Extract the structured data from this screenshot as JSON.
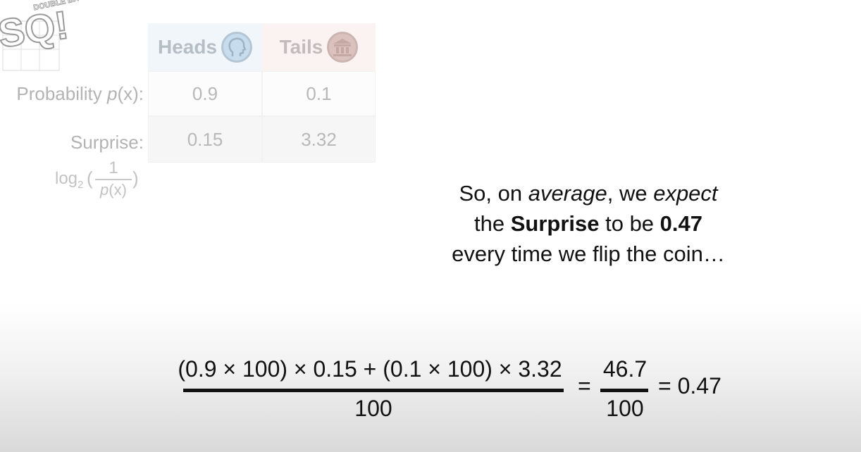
{
  "logo": {
    "small_text": "DOUBLE BAM!!",
    "letters": "SQ!"
  },
  "table": {
    "headers": [
      {
        "label": "Heads",
        "icon": "head-profile-icon"
      },
      {
        "label": "Tails",
        "icon": "building-icon"
      }
    ],
    "rows": [
      {
        "label_prefix": "Probability ",
        "label_var": "p",
        "label_suffix": "(x):",
        "values": [
          "0.9",
          "0.1"
        ]
      },
      {
        "label": "Surprise:",
        "values": [
          "0.15",
          "3.32"
        ]
      }
    ],
    "surprise_formula": {
      "log": "log",
      "base": "2",
      "open": "(",
      "numerator": "1",
      "denominator_var": "p",
      "denominator_rest": "(x)",
      "close": ")"
    }
  },
  "message": {
    "line1_a": "So, on ",
    "line1_em": "average",
    "line1_b": ", we ",
    "line1_em2": "expect",
    "line2_a": "the ",
    "line2_strong": "Surprise",
    "line2_b": " to be ",
    "line2_strong2": "0.47",
    "line3": "every time we flip the coin…"
  },
  "equation": {
    "numerator": "(0.9 × 100) × 0.15 + (0.1 × 100) × 3.32",
    "denominator": "100",
    "equals1": "=",
    "frac_numerator": "46.7",
    "frac_denominator": "100",
    "result": "= 0.47"
  }
}
